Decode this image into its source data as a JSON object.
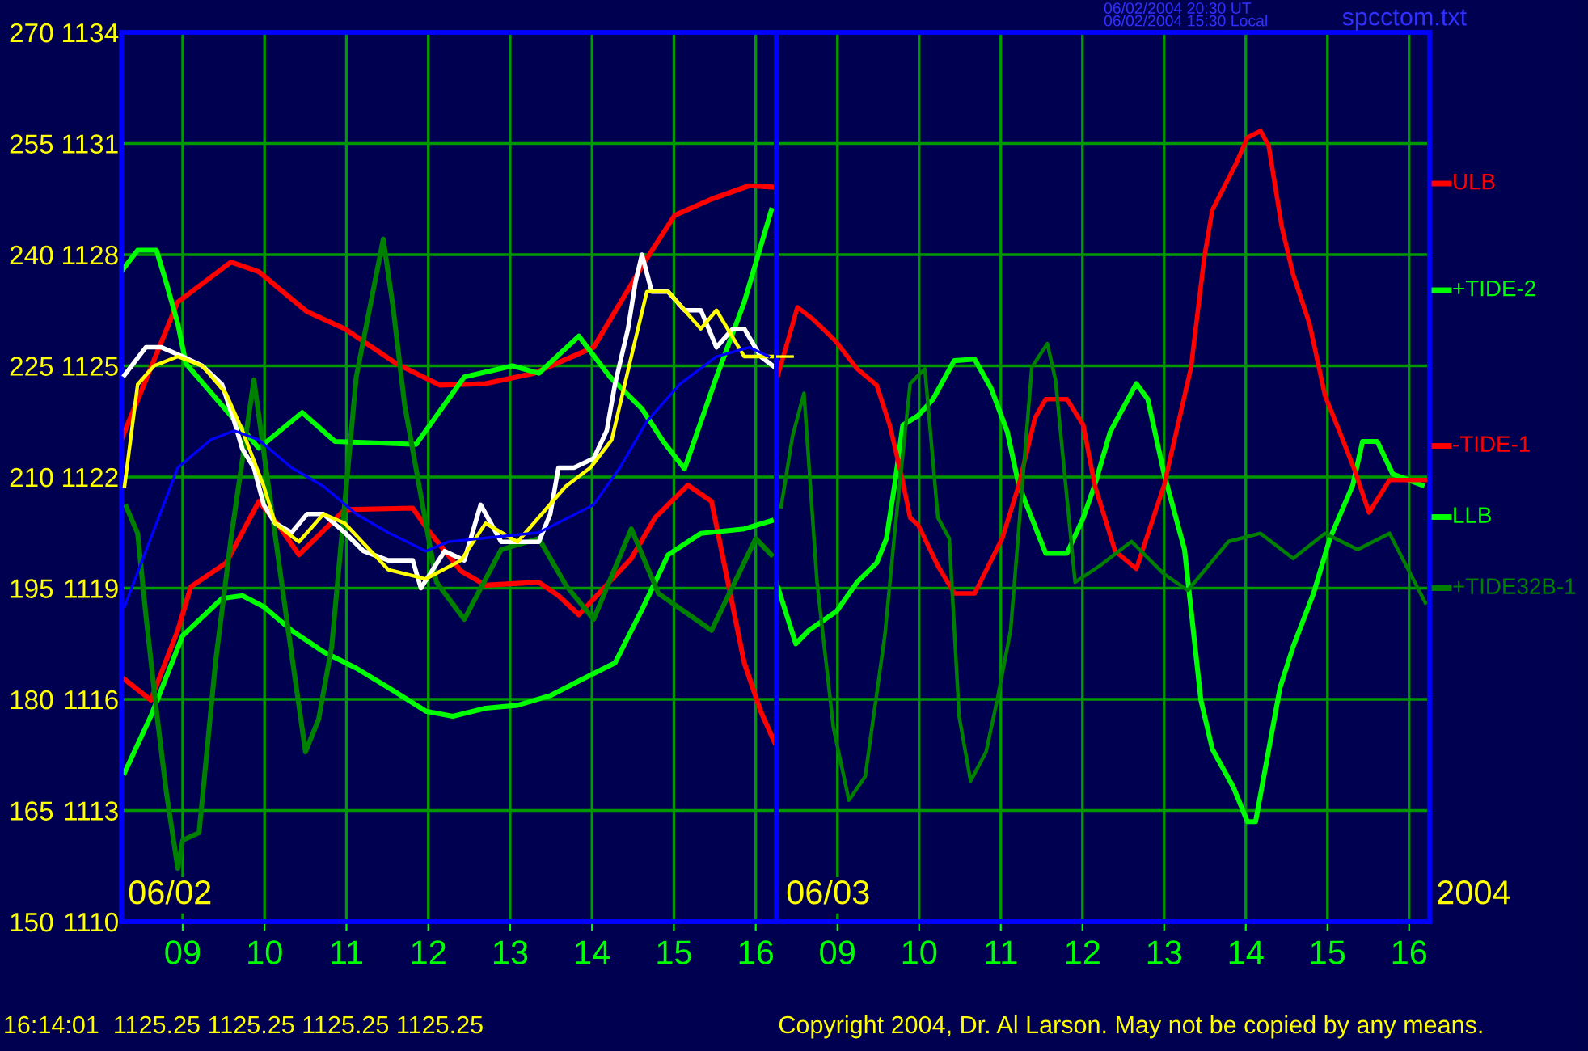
{
  "chart_data": [
    {
      "type": "line",
      "xlim": [
        8.25,
        16.25
      ],
      "xticks": [
        {
          "value": 9,
          "label": "09"
        },
        10,
        11,
        12,
        13,
        14,
        15,
        16
      ],
      "ylim": [
        150,
        270
      ],
      "yticks": [
        150,
        165,
        180,
        195,
        210,
        225,
        240,
        255,
        270
      ],
      "y2lim": [
        1110,
        1134
      ],
      "y2ticks": [
        1110,
        1113,
        1116,
        1119,
        1122,
        1125,
        1128,
        1131,
        1134
      ],
      "grid": true,
      "legend": "right",
      "series": [
        {
          "name": "ULB",
          "color": "#ff0000",
          "x": [
            8.25,
            8.94,
            9.59,
            9.93,
            10.52,
            10.98,
            11.61,
            12.14,
            12.7,
            13.29,
            14.02,
            14.67,
            15.01,
            15.46,
            15.92,
            16.25
          ],
          "values": [
            215.0,
            233.6,
            239.0,
            237.7,
            232.3,
            230,
            225.3,
            222.4,
            222.6,
            224,
            227.5,
            239.5,
            245.3,
            247.5,
            249.3,
            249.1
          ]
        },
        {
          "name": "+TIDE-2",
          "color": "#00ff00",
          "x": [
            8.25,
            8.45,
            8.68,
            8.8,
            8.94,
            9.04,
            9.93,
            10.46,
            10.86,
            11.85,
            12.44,
            13.03,
            13.35,
            13.84,
            14.22,
            14.61,
            14.87,
            15.13,
            15.52,
            15.86,
            16.19
          ],
          "values": [
            237.7,
            240.6,
            240.6,
            236.2,
            230.7,
            225.3,
            213.9,
            218.7,
            214.8,
            214.4,
            223.5,
            225,
            224,
            229,
            223.5,
            219.2,
            214.8,
            211.1,
            223.5,
            233.6,
            246
          ]
        },
        {
          "name": "-TIDE-1",
          "color": "#ff0000",
          "x": [
            8.29,
            8.61,
            8.94,
            9.1,
            9.53,
            9.93,
            10.17,
            10.42,
            10.98,
            11.81,
            12.0,
            12.4,
            12.7,
            13.35,
            13.59,
            13.84,
            14.48,
            14.77,
            15.17,
            15.46,
            15.66,
            15.86,
            16.06,
            16.23
          ],
          "values": [
            182.7,
            179.9,
            189.3,
            195.2,
            198.4,
            206.7,
            203.5,
            199.5,
            205.6,
            205.8,
            202.8,
            197.3,
            195.4,
            195.8,
            194,
            191.4,
            199,
            204.5,
            208.9,
            206.7,
            195.8,
            184.9,
            178.4,
            174.2
          ]
        },
        {
          "name": "LLB",
          "color": "#00ff00",
          "x": [
            8.29,
            8.61,
            9.0,
            9.48,
            9.73,
            9.99,
            10.33,
            10.72,
            11.12,
            11.51,
            11.97,
            12.3,
            12.7,
            13.09,
            13.49,
            13.88,
            14.28,
            14.61,
            14.93,
            15.33,
            15.86,
            16.19
          ],
          "values": [
            170.1,
            177.7,
            188.6,
            193.6,
            194,
            192.5,
            189.3,
            186.4,
            184.2,
            181.6,
            178.4,
            177.7,
            178.8,
            179.2,
            180.5,
            182.7,
            184.9,
            192.1,
            199.5,
            202.4,
            203,
            204.1
          ]
        },
        {
          "name": "+TIDE32B-1",
          "color": "#008000",
          "x": [
            8.31,
            8.45,
            8.55,
            8.68,
            8.8,
            8.94,
            9.0,
            9.2,
            9.4,
            9.59,
            9.87,
            10.27,
            10.5,
            10.66,
            10.82,
            11.12,
            11.45,
            11.57,
            11.71,
            12.1,
            12.44,
            12.89,
            13.35,
            13.68,
            14.02,
            14.48,
            14.81,
            15.46,
            16.0,
            16.19
          ],
          "values": [
            206,
            202.4,
            191.4,
            178.4,
            167.5,
            157.2,
            161,
            162,
            184.9,
            201.7,
            223.1,
            190.8,
            172.9,
            177.3,
            187.1,
            223.5,
            242.1,
            232.9,
            219.8,
            195.8,
            190.8,
            200.2,
            201.7,
            195.4,
            190.8,
            203,
            194.3,
            189.3,
            201.7,
            199.5
          ]
        },
        {
          "color": "#ffffff",
          "axis": "y2",
          "x": [
            8.29,
            8.55,
            8.74,
            9.0,
            9.24,
            9.48,
            9.63,
            9.73,
            9.87,
            9.99,
            10.13,
            10.33,
            10.52,
            10.72,
            10.98,
            11.21,
            11.51,
            11.81,
            11.91,
            12.2,
            12.44,
            12.64,
            12.89,
            13.09,
            13.35,
            13.49,
            13.59,
            13.78,
            14.02,
            14.18,
            14.28,
            14.44,
            14.53,
            14.61,
            14.73,
            14.93,
            15.13,
            15.33,
            15.52,
            15.72,
            15.86,
            16.06,
            16.21
          ],
          "values": [
            1124.75,
            1125.5,
            1125.5,
            1125.25,
            1125,
            1124.5,
            1123.5,
            1122.75,
            1122.25,
            1121.25,
            1120.75,
            1120.5,
            1121,
            1121,
            1120.5,
            1120,
            1119.75,
            1119.75,
            1119,
            1120,
            1119.75,
            1121.25,
            1120.25,
            1120.25,
            1120.25,
            1121,
            1122.25,
            1122.25,
            1122.5,
            1123.25,
            1124.5,
            1126,
            1127.25,
            1128,
            1127,
            1127,
            1126.5,
            1126.5,
            1125.5,
            1126,
            1126,
            1125.25,
            1125
          ]
        },
        {
          "color": "#ffff00",
          "axis": "y2",
          "x": [
            8.29,
            8.45,
            8.65,
            8.94,
            9.24,
            9.53,
            9.73,
            9.99,
            10.13,
            10.42,
            10.72,
            10.98,
            11.51,
            11.97,
            12.4,
            12.7,
            13.09,
            13.68,
            13.98,
            14.24,
            14.48,
            14.67,
            14.93,
            15.13,
            15.33,
            15.52,
            15.86,
            16.25
          ],
          "values": [
            1121.75,
            1124.5,
            1125,
            1125.25,
            1125,
            1124.25,
            1123.25,
            1121.75,
            1120.75,
            1120.25,
            1121,
            1120.75,
            1119.5,
            1119.25,
            1119.75,
            1120.75,
            1120.25,
            1121.75,
            1122.25,
            1123,
            1125.25,
            1127,
            1127,
            1126.5,
            1126,
            1126.5,
            1125.25,
            1125.25
          ]
        },
        {
          "color": "#0000ff",
          "axis": "y2",
          "x": [
            8.29,
            8.94,
            9.34,
            9.63,
            9.93,
            10.33,
            10.72,
            11.12,
            11.51,
            11.97,
            12.24,
            13.35,
            14.02,
            14.34,
            14.67,
            15.07,
            15.52,
            15.92,
            16.16
          ],
          "values": [
            1118.5,
            1122.25,
            1123,
            1123.25,
            1123,
            1122.25,
            1121.75,
            1121,
            1120.5,
            1120,
            1120.25,
            1120.5,
            1121.25,
            1122.25,
            1123.5,
            1124.5,
            1125.25,
            1125.5,
            1125.25
          ]
        }
      ],
      "annotations": [
        "06/02",
        "06/02/2004 20:30 UT",
        "06/02/2004 15:30 Local",
        "spcctom.txt",
        "16:14:01  1125.25 1125.25 1125.25 1125.25",
        "Copyright 2004, Dr. Al Larson. May not be copied by any means."
      ]
    },
    {
      "type": "line",
      "xlim": [
        8.25,
        16.25
      ],
      "xticks": [
        {
          "value": 9,
          "label": "09"
        },
        10,
        11,
        12,
        13,
        14,
        15,
        16
      ],
      "ylim": [
        150,
        270
      ],
      "yticks": [
        150,
        165,
        180,
        195,
        210,
        225,
        240,
        255,
        270
      ],
      "y2lim": [
        1110,
        1134
      ],
      "y2ticks": [
        1110,
        1113,
        1116,
        1119,
        1122,
        1125,
        1128,
        1131,
        1134
      ],
      "tick_labels": "x",
      "grid": true,
      "series": [
        {
          "color": "#00ff00",
          "x": [
            8.25,
            8.49,
            8.65,
            8.99,
            9.24,
            9.48,
            9.6,
            9.7,
            9.8,
            9.99,
            10.17,
            10.43,
            10.68,
            10.88,
            11.08,
            11.22,
            11.55,
            11.81,
            12.01,
            12.15,
            12.34,
            12.66,
            12.8,
            13.0,
            13.25,
            13.45,
            13.59,
            13.85,
            14.02,
            14.12,
            14.42,
            14.58,
            14.83,
            15.03,
            15.31,
            15.43,
            15.61,
            15.8,
            16.16
          ],
          "values": [
            195.8,
            187.5,
            189.3,
            191.9,
            195.8,
            198.4,
            201.7,
            208.9,
            217,
            218.3,
            220.5,
            225.7,
            225.9,
            222,
            216.1,
            208.9,
            199.7,
            199.7,
            204.5,
            208.9,
            216.1,
            222.6,
            220.5,
            210.4,
            200.2,
            179.9,
            173.3,
            168.1,
            163.5,
            163.5,
            181.6,
            187.1,
            194.3,
            201.7,
            208.9,
            214.8,
            214.8,
            210.4,
            208.9
          ]
        },
        {
          "color": "#ff0000",
          "x": [
            8.27,
            8.51,
            8.71,
            8.98,
            9.24,
            9.48,
            9.64,
            9.78,
            9.89,
            9.99,
            10.23,
            10.43,
            10.68,
            11.02,
            11.22,
            11.42,
            11.55,
            11.81,
            12.01,
            12.15,
            12.4,
            12.66,
            13.0,
            13.33,
            13.49,
            13.59,
            13.89,
            14.02,
            14.18,
            14.28,
            14.44,
            14.58,
            14.78,
            14.97,
            15.17,
            15.33,
            15.51,
            15.76,
            16.22
          ],
          "values": [
            223.7,
            232.9,
            231.2,
            228.3,
            224.6,
            222.4,
            217,
            210.4,
            204.5,
            203.5,
            198,
            194.3,
            194.3,
            201.8,
            208.9,
            218,
            220.5,
            220.5,
            217,
            208.9,
            200,
            197.6,
            208.9,
            224.8,
            239.5,
            246,
            252.5,
            255.8,
            256.7,
            254.7,
            243.8,
            237.3,
            230.7,
            221,
            215.5,
            211,
            205.2,
            209.6,
            209.6
          ]
        },
        {
          "color": "#008000",
          "x": [
            8.31,
            8.45,
            8.59,
            8.75,
            8.95,
            9.14,
            9.34,
            9.58,
            9.7,
            9.89,
            10.07,
            10.23,
            10.37,
            10.49,
            10.63,
            10.82,
            10.96,
            11.12,
            11.38,
            11.57,
            11.67,
            11.91,
            12.21,
            12.6,
            13.0,
            13.29,
            13.79,
            14.18,
            14.58,
            14.97,
            15.37,
            15.76,
            16.2
          ],
          "values": [
            206,
            215.5,
            221.3,
            195.8,
            176.2,
            166.4,
            169.6,
            188.6,
            202.4,
            222.6,
            224.6,
            204.5,
            201.7,
            177.7,
            169,
            172.9,
            180.1,
            189.3,
            224.8,
            228,
            223.1,
            195.8,
            198,
            201.3,
            196.9,
            194.7,
            201.3,
            202.4,
            199,
            202.4,
            200.2,
            202.4,
            193
          ]
        },
        {
          "color": "#ffff00",
          "axis": "y2",
          "x": [
            8.25,
            8.45
          ],
          "values": [
            1125.25,
            1125.25
          ]
        }
      ],
      "annotations": [
        "06/03",
        "2004"
      ]
    }
  ]
}
